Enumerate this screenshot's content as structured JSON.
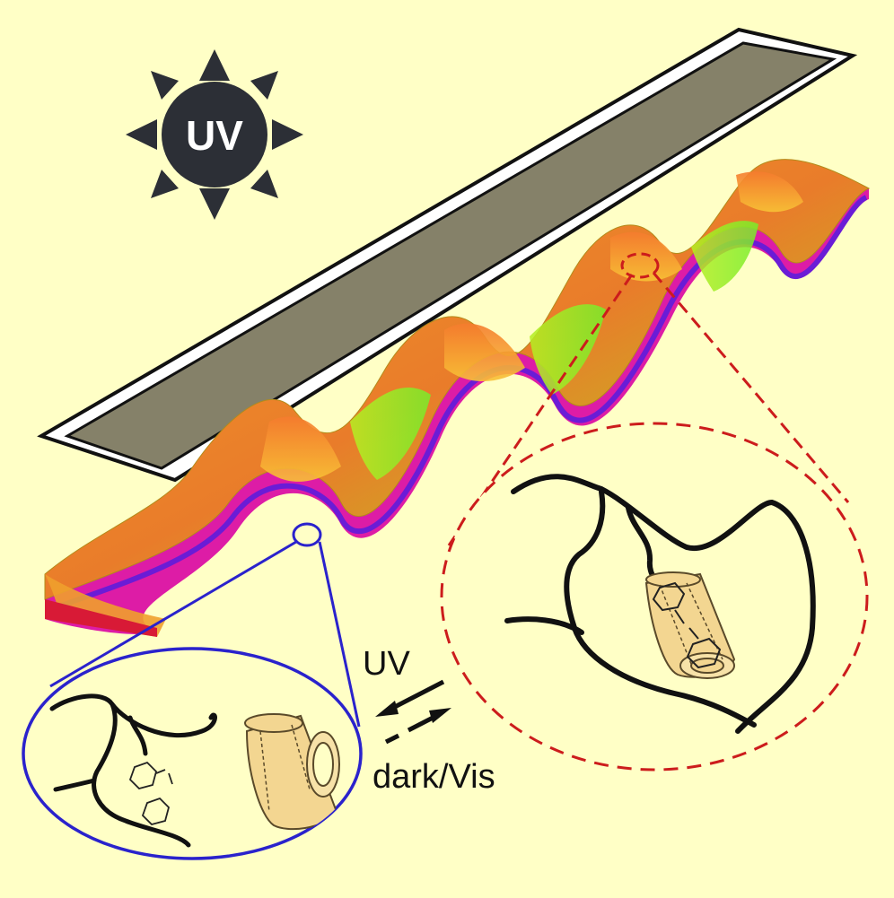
{
  "sun": {
    "label": "UV"
  },
  "arrows": {
    "forward_label": "UV",
    "reverse_label": "dark/Vis"
  },
  "colors": {
    "background": "#ffffc6",
    "sun_fill": "#2c2f36",
    "flat_strip_fill": "#858169",
    "flat_strip_border": "#ffffff",
    "strip_pink": "#dd1ca6",
    "strip_orange": "#f0a02c",
    "strip_green": "#8ef022",
    "zoom_circle_blue": "#2a22cc",
    "zoom_circle_red": "#cc1c1c",
    "cyclodextrin": "#f3d691"
  },
  "icons": {
    "sun": "sun-icon",
    "cyclodextrin": "cyclodextrin-cone",
    "azobenzene": "azobenzene-molecule"
  }
}
